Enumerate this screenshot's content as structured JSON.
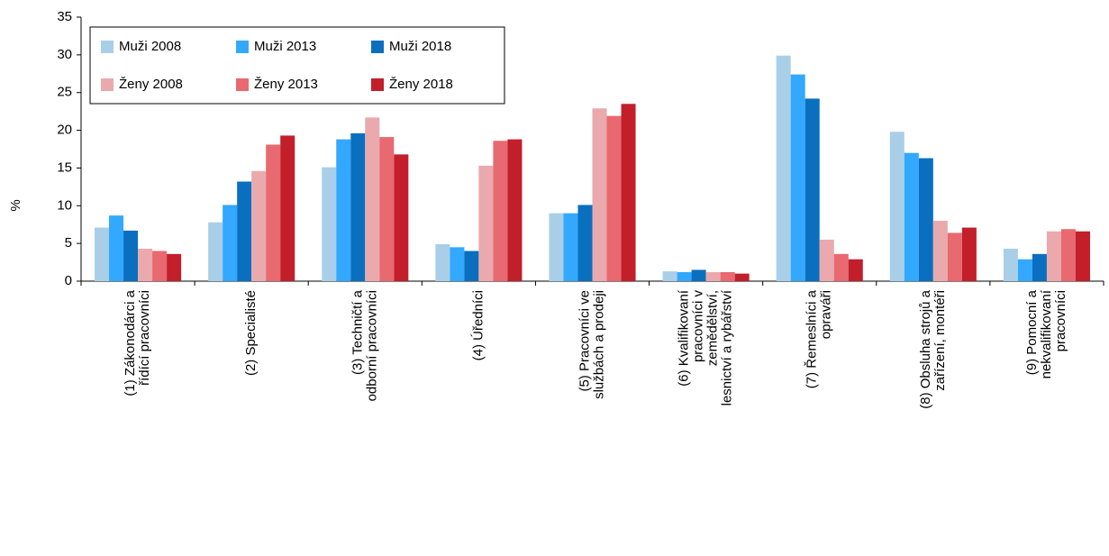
{
  "chart_data": {
    "type": "bar",
    "ylabel": "%",
    "categories": [
      "(1) Zákonodárci a\nřídící pracovníci",
      "(2) Specialisté",
      "(3) Techničtí a\nodborní pracovníci",
      "(4) Úředníci",
      "(5) Pracovníci ve\nslužbách a prodeji",
      "(6) Kvalifikovaní\npracovníci v\nzemědělství,\nlesnictví a rybářství",
      "(7) Řemeslníci a\nopraváři",
      "(8) Obsluha strojů a\nzařízení, montéři",
      "(9) Pomocní a\nnekvalifikovaní\npracovníci"
    ],
    "series": [
      {
        "name": "Muži 2008",
        "color": "#a9cfe8",
        "values": [
          7.1,
          7.8,
          15.1,
          4.9,
          9.0,
          1.3,
          29.9,
          19.8,
          4.3
        ]
      },
      {
        "name": "Muži 2013",
        "color": "#33a8ff",
        "values": [
          8.7,
          10.1,
          18.8,
          4.5,
          9.0,
          1.2,
          27.4,
          17.0,
          2.9
        ]
      },
      {
        "name": "Muži 2018",
        "color": "#0a6fbf",
        "values": [
          6.7,
          13.2,
          19.6,
          4.0,
          10.1,
          1.5,
          24.2,
          16.3,
          3.6
        ]
      },
      {
        "name": "Ženy 2008",
        "color": "#eaa9ad",
        "values": [
          4.3,
          14.6,
          21.7,
          15.3,
          22.9,
          1.2,
          5.5,
          8.0,
          6.6
        ]
      },
      {
        "name": "Ženy 2013",
        "color": "#e8696f",
        "values": [
          4.0,
          18.1,
          19.1,
          18.6,
          21.9,
          1.2,
          3.6,
          6.4,
          6.9
        ]
      },
      {
        "name": "Ženy 2018",
        "color": "#c21f2b",
        "values": [
          3.6,
          19.3,
          16.8,
          18.8,
          23.5,
          1.0,
          2.9,
          7.1,
          6.6
        ]
      }
    ],
    "ylim": [
      0,
      35
    ],
    "yticks": [
      0,
      5,
      10,
      15,
      20,
      25,
      30,
      35
    ],
    "grid": false,
    "legend": "top-left"
  }
}
